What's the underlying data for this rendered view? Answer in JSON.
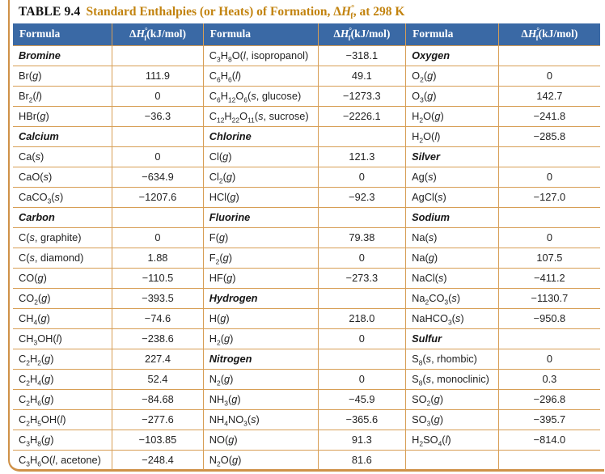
{
  "title": {
    "number": "TABLE 9.4",
    "caption": "Standard Enthalpies (or Heats) of Formation, Δ*H*^{°}_{f}, at 298 K"
  },
  "header": {
    "formula_label": "Formula",
    "enthalpy_label": "Δ*H*^{°}_{f}(kJ/mol)"
  },
  "colors": {
    "header_bg": "#3a69a5",
    "header_text": "#ffffff",
    "grid_line": "#d79e55",
    "frame_border": "#cf9148",
    "title_accent": "#c2830f",
    "category_text": "#161616",
    "body_text": "#232323"
  },
  "columns": [
    {
      "rows": [
        {
          "type": "category",
          "label": "Bromine"
        },
        {
          "type": "data",
          "formula": "Br(*g*)",
          "value": "111.9"
        },
        {
          "type": "data",
          "formula": "Br_{2}(*l*)",
          "value": "0"
        },
        {
          "type": "data",
          "formula": "HBr(*g*)",
          "value": "−36.3"
        },
        {
          "type": "category",
          "label": "Calcium"
        },
        {
          "type": "data",
          "formula": "Ca(*s*)",
          "value": "0"
        },
        {
          "type": "data",
          "formula": "CaO(*s*)",
          "value": "−634.9"
        },
        {
          "type": "data",
          "formula": "CaCO_{3}(*s*)",
          "value": "−1207.6"
        },
        {
          "type": "category",
          "label": "Carbon"
        },
        {
          "type": "data",
          "formula": "C(*s*, graphite)",
          "value": "0"
        },
        {
          "type": "data",
          "formula": "C(*s*, diamond)",
          "value": "1.88"
        },
        {
          "type": "data",
          "formula": "CO(*g*)",
          "value": "−110.5"
        },
        {
          "type": "data",
          "formula": "CO_{2}(*g*)",
          "value": "−393.5"
        },
        {
          "type": "data",
          "formula": "CH_{4}(*g*)",
          "value": "−74.6"
        },
        {
          "type": "data",
          "formula": "CH_{3}OH(*l*)",
          "value": "−238.6"
        },
        {
          "type": "data",
          "formula": "C_{2}H_{2}(*g*)",
          "value": "227.4"
        },
        {
          "type": "data",
          "formula": "C_{2}H_{4}(*g*)",
          "value": "52.4"
        },
        {
          "type": "data",
          "formula": "C_{2}H_{6}(*g*)",
          "value": "−84.68"
        },
        {
          "type": "data",
          "formula": "C_{2}H_{5}OH(*l*)",
          "value": "−277.6"
        },
        {
          "type": "data",
          "formula": "C_{3}H_{8}(*g*)",
          "value": "−103.85"
        },
        {
          "type": "data",
          "formula": "C_{3}H_{6}O(*l*, acetone)",
          "value": "−248.4"
        }
      ]
    },
    {
      "rows": [
        {
          "type": "data",
          "formula": "C_{3}H_{8}O(*l*, isopropanol)",
          "value": "−318.1"
        },
        {
          "type": "data",
          "formula": "C_{6}H_{6}(*l*)",
          "value": "49.1"
        },
        {
          "type": "data",
          "formula": "C_{6}H_{12}O_{6}(*s*, glucose)",
          "value": "−1273.3"
        },
        {
          "type": "data",
          "formula": "C_{12}H_{22}O_{11}(*s*, sucrose)",
          "value": "−2226.1"
        },
        {
          "type": "category",
          "label": "Chlorine"
        },
        {
          "type": "data",
          "formula": "Cl(*g*)",
          "value": "121.3"
        },
        {
          "type": "data",
          "formula": "Cl_{2}(*g*)",
          "value": "0"
        },
        {
          "type": "data",
          "formula": "HCl(*g*)",
          "value": "−92.3"
        },
        {
          "type": "category",
          "label": "Fluorine"
        },
        {
          "type": "data",
          "formula": "F(*g*)",
          "value": "79.38"
        },
        {
          "type": "data",
          "formula": "F_{2}(*g*)",
          "value": "0"
        },
        {
          "type": "data",
          "formula": "HF(*g*)",
          "value": "−273.3"
        },
        {
          "type": "category",
          "label": "Hydrogen"
        },
        {
          "type": "data",
          "formula": "H(*g*)",
          "value": "218.0"
        },
        {
          "type": "data",
          "formula": "H_{2}(*g*)",
          "value": "0"
        },
        {
          "type": "category",
          "label": "Nitrogen"
        },
        {
          "type": "data",
          "formula": "N_{2}(*g*)",
          "value": "0"
        },
        {
          "type": "data",
          "formula": "NH_{3}(*g*)",
          "value": "−45.9"
        },
        {
          "type": "data",
          "formula": "NH_{4}NO_{3}(*s*)",
          "value": "−365.6"
        },
        {
          "type": "data",
          "formula": "NO(*g*)",
          "value": "91.3"
        },
        {
          "type": "data",
          "formula": "N_{2}O(*g*)",
          "value": "81.6"
        }
      ]
    },
    {
      "rows": [
        {
          "type": "category",
          "label": "Oxygen"
        },
        {
          "type": "data",
          "formula": "O_{2}(*g*)",
          "value": "0"
        },
        {
          "type": "data",
          "formula": "O_{3}(*g*)",
          "value": "142.7"
        },
        {
          "type": "data",
          "formula": "H_{2}O(*g*)",
          "value": "−241.8"
        },
        {
          "type": "data",
          "formula": "H_{2}O(*l*)",
          "value": "−285.8"
        },
        {
          "type": "category",
          "label": "Silver"
        },
        {
          "type": "data",
          "formula": "Ag(*s*)",
          "value": "0"
        },
        {
          "type": "data",
          "formula": "AgCl(*s*)",
          "value": "−127.0"
        },
        {
          "type": "category",
          "label": "Sodium"
        },
        {
          "type": "data",
          "formula": "Na(*s*)",
          "value": "0"
        },
        {
          "type": "data",
          "formula": "Na(*g*)",
          "value": "107.5"
        },
        {
          "type": "data",
          "formula": "NaCl(*s*)",
          "value": "−411.2"
        },
        {
          "type": "data",
          "formula": "Na_{2}CO_{3}(*s*)",
          "value": "−1130.7"
        },
        {
          "type": "data",
          "formula": "NaHCO_{3}(*s*)",
          "value": "−950.8"
        },
        {
          "type": "category",
          "label": "Sulfur"
        },
        {
          "type": "data",
          "formula": "S_{8}(*s*, rhombic)",
          "value": "0"
        },
        {
          "type": "data",
          "formula": "S_{8}(*s*, monoclinic)",
          "value": "0.3"
        },
        {
          "type": "data",
          "formula": "SO_{2}(*g*)",
          "value": "−296.8"
        },
        {
          "type": "data",
          "formula": "SO_{3}(*g*)",
          "value": "−395.7"
        },
        {
          "type": "data",
          "formula": "H_{2}SO_{4}(*l*)",
          "value": "−814.0"
        },
        {
          "type": "empty"
        }
      ]
    }
  ]
}
